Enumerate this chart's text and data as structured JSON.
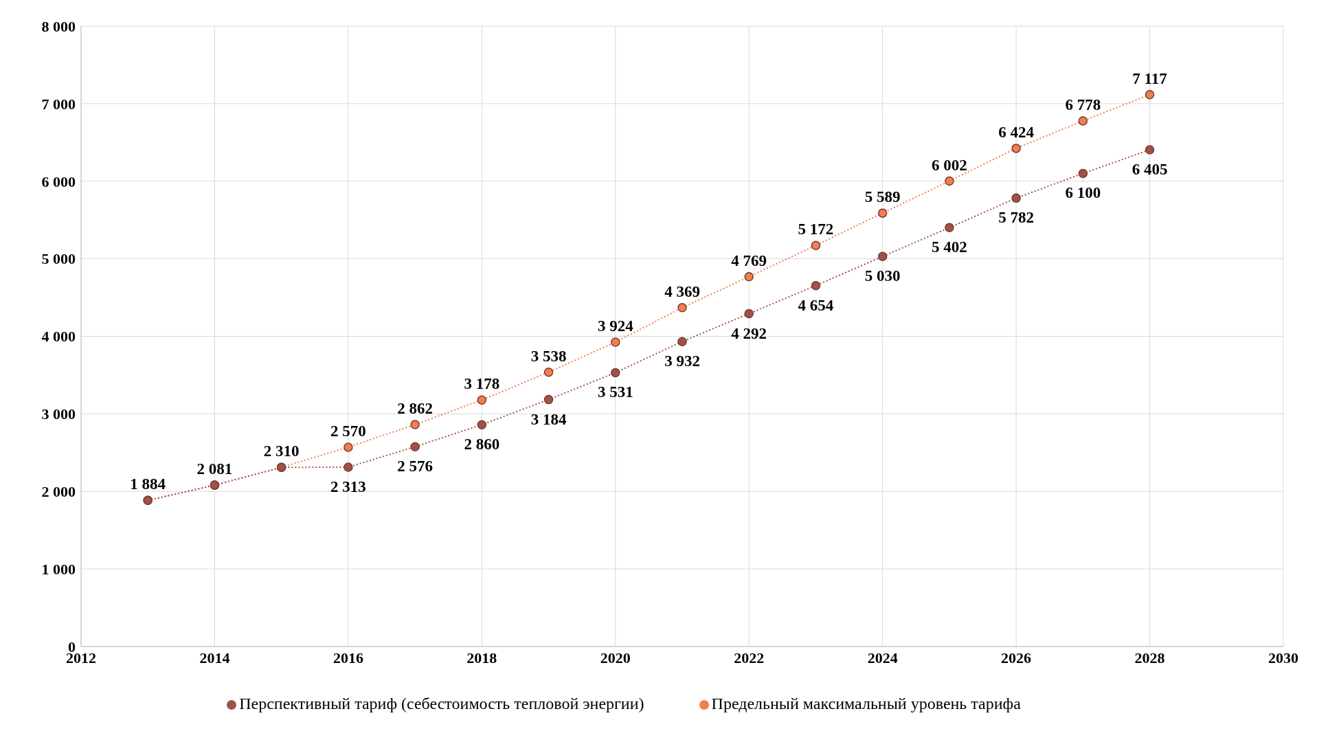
{
  "chart_data": {
    "type": "line",
    "x": [
      2013,
      2014,
      2015,
      2016,
      2017,
      2018,
      2019,
      2020,
      2021,
      2022,
      2023,
      2024,
      2025,
      2026,
      2027,
      2028
    ],
    "series": [
      {
        "name": "Предельный максимальный уровень тарифа",
        "color": "#f07f50",
        "values": [
          1884,
          2081,
          2310,
          2570,
          2862,
          3178,
          3538,
          3924,
          4369,
          4769,
          5172,
          5589,
          6002,
          6424,
          6778,
          7117
        ],
        "value_labels": [
          "1 884",
          "2 081",
          "2 310",
          "2 570",
          "2 862",
          "3 178",
          "3 538",
          "3 924",
          "4 369",
          "4 769",
          "5 172",
          "5 589",
          "6 002",
          "6 424",
          "6 778",
          "7 117"
        ]
      },
      {
        "name": "Перспективный тариф (себестоимость тепловой энергии)",
        "color": "#a0524a",
        "values": [
          1884,
          2081,
          2310,
          2313,
          2576,
          2860,
          3184,
          3531,
          3932,
          4292,
          4654,
          5030,
          5402,
          5782,
          6100,
          6405
        ],
        "value_labels": [
          null,
          null,
          null,
          "2 313",
          "2 576",
          "2 860",
          "3 184",
          "3 531",
          "3 932",
          "4 292",
          "4 654",
          "5 030",
          "5 402",
          "5 782",
          "6 100",
          "6 405"
        ]
      }
    ],
    "xlim": [
      2012,
      2030
    ],
    "xticks": [
      2012,
      2014,
      2016,
      2018,
      2020,
      2022,
      2024,
      2026,
      2028,
      2030
    ],
    "ylim": [
      0,
      8000
    ],
    "yticks": [
      0,
      {
        "value": 1000,
        "label": "1 000"
      },
      {
        "value": 2000,
        "label": "2 000"
      },
      {
        "value": 3000,
        "label": "3 000"
      },
      {
        "value": 4000,
        "label": "4 000"
      },
      {
        "value": 5000,
        "label": "5 000"
      },
      {
        "value": 6000,
        "label": "6 000"
      },
      {
        "value": 7000,
        "label": "7 000"
      },
      {
        "value": 8000,
        "label": "8 000"
      }
    ],
    "grid": true,
    "legend": "bottom",
    "marker": "circle",
    "line_style": "dotted"
  }
}
